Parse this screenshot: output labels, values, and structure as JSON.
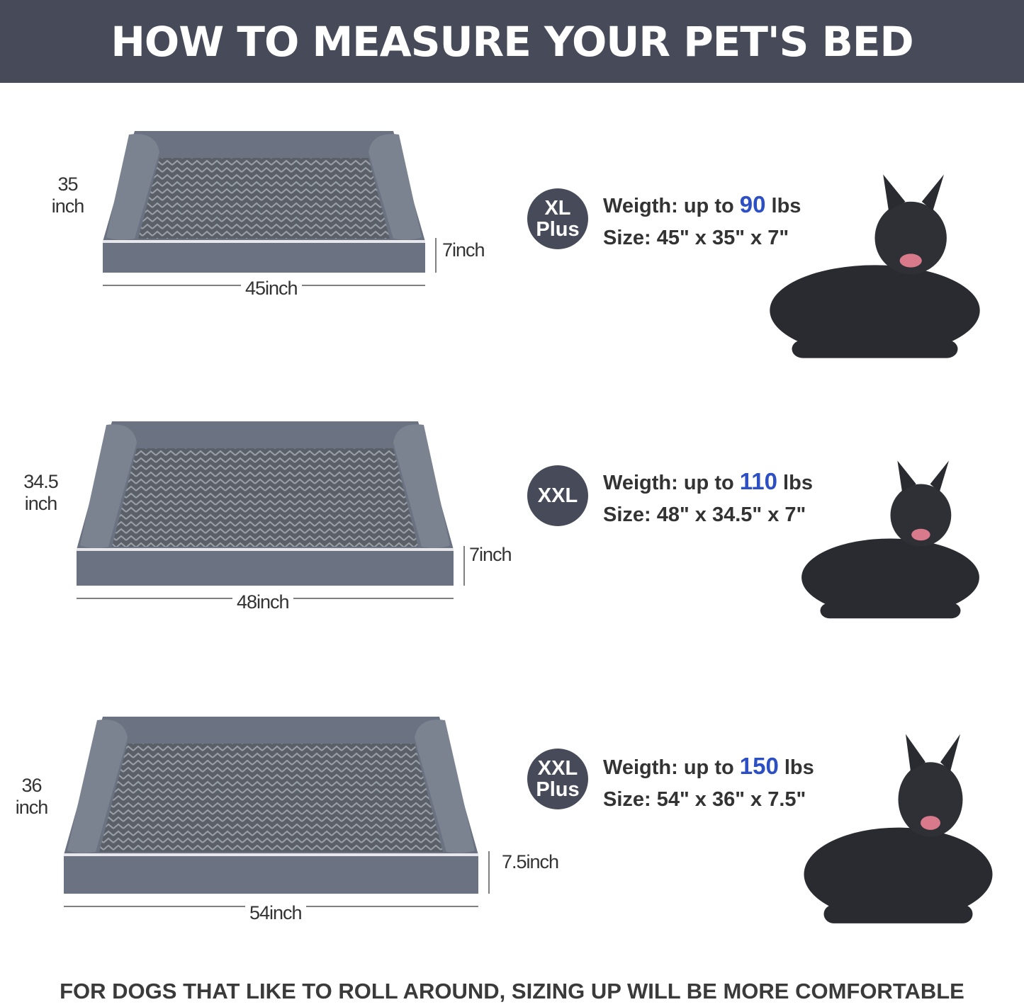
{
  "header": {
    "title": "HOW TO MEASURE YOUR PET'S BED"
  },
  "sizes": [
    {
      "badge_line1": "XL",
      "badge_line2": "Plus",
      "weight_prefix": "Weigth: up to ",
      "weight_value": "90",
      "weight_unit": " lbs",
      "size": "Size: 45\" x 35\" x 7\"",
      "depth_l1": "35",
      "depth_l2": "inch",
      "height": "7inch",
      "width": "45inch",
      "dog": "german-shepherd"
    },
    {
      "badge_line1": "XXL",
      "badge_line2": "",
      "weight_prefix": "Weigth: up to ",
      "weight_value": "110",
      "weight_unit": " lbs",
      "size": "Size: 48\" x 34.5\" x 7\"",
      "depth_l1": "34.5",
      "depth_l2": "inch",
      "height": "7inch",
      "width": "48inch",
      "dog": "great-dane"
    },
    {
      "badge_line1": "XXL",
      "badge_line2": "Plus",
      "weight_prefix": "Weigth: up to ",
      "weight_value": "150",
      "weight_unit": " lbs",
      "size": "Size: 54\" x 36\" x 7.5\"",
      "depth_l1": "36",
      "depth_l2": "inch",
      "height": "7.5inch",
      "width": "54inch",
      "dog": "cane-corso"
    }
  ],
  "footer": {
    "text": "FOR DOGS THAT LIKE TO ROLL AROUND, SIZING UP WILL BE MORE COMFORTABLE"
  },
  "colors": {
    "header_bg": "#474b59",
    "accent": "#2d4fc4",
    "bed": "#6b7382"
  }
}
